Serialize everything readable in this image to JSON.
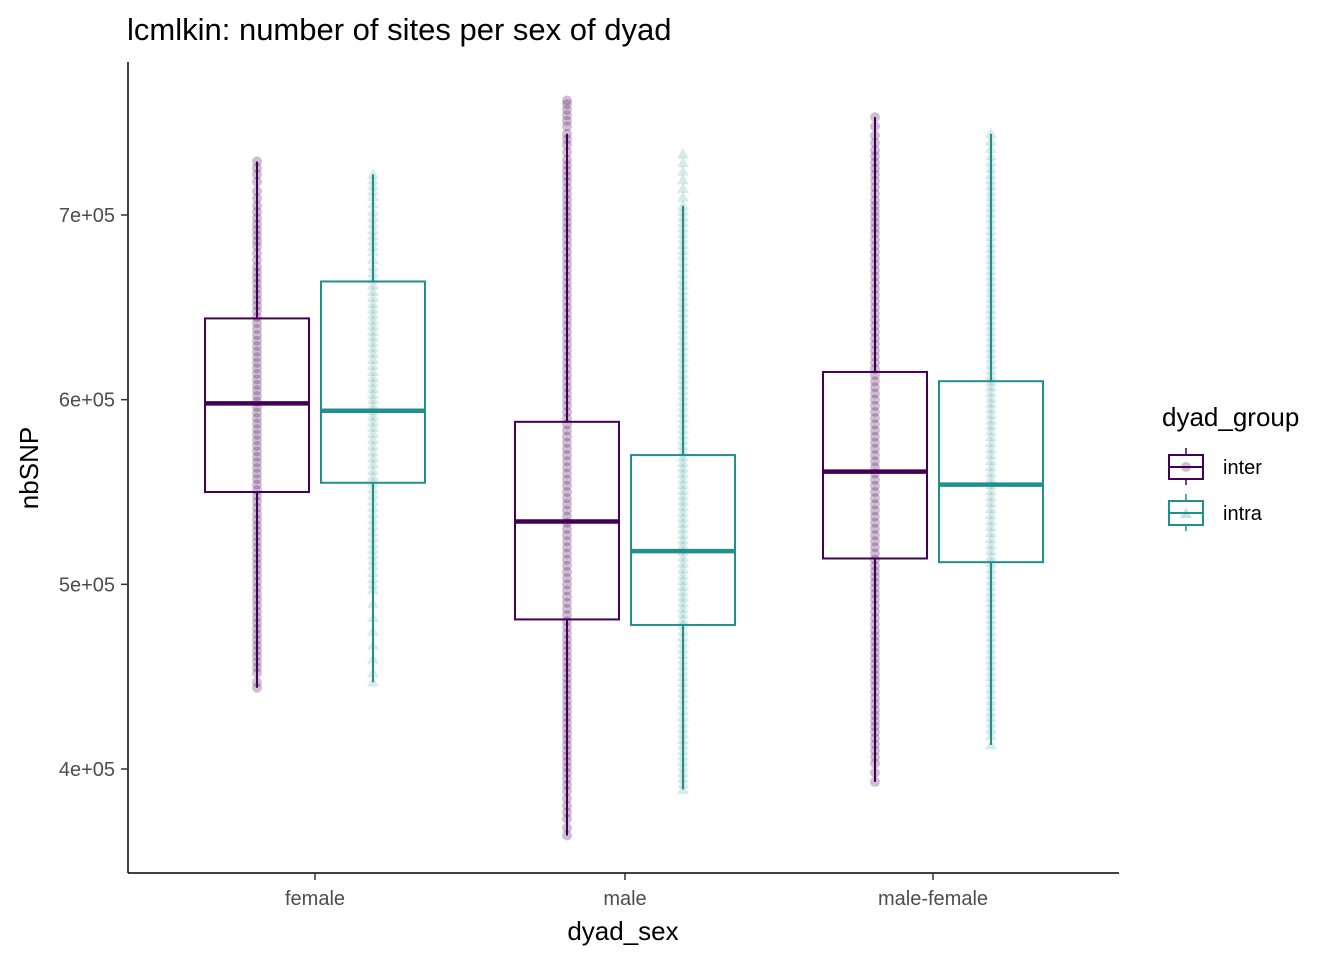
{
  "chart_data": {
    "type": "boxplot",
    "title": "lcmlkin: number of sites per sex of dyad",
    "xlabel": "dyad_sex",
    "ylabel": "nbSNP",
    "categories": [
      "female",
      "male",
      "male-female"
    ],
    "y_ticks": [
      400000,
      500000,
      600000,
      700000
    ],
    "y_tick_labels": [
      "4e+05",
      "5e+05",
      "6e+05",
      "7e+05"
    ],
    "ylim": [
      345000,
      782000
    ],
    "grid": false,
    "legend": {
      "title": "dyad_group",
      "placement": "right",
      "entries": [
        "inter",
        "intra"
      ]
    },
    "colors": {
      "inter": "#440154",
      "intra": "#21908c"
    },
    "point_shapes": {
      "inter": "circle",
      "intra": "triangle"
    },
    "series": [
      {
        "name": "inter",
        "boxes": [
          {
            "category": "female",
            "min": 444000,
            "q1": 550000,
            "median": 598000,
            "q3": 644000,
            "max": 729000,
            "points": [
              444000,
              447000,
              452000,
              455000,
              461000,
              470000,
              482000,
              495000,
              508000,
              520000,
              535000,
              548000,
              560000,
              575000,
              590000,
              605000,
              620000,
              635000,
              648000,
              660000,
              672000,
              683000,
              695000,
              705000,
              713000,
              718000,
              722000,
              729000
            ]
          },
          {
            "category": "male",
            "min": 364000,
            "q1": 481000,
            "median": 534000,
            "q3": 588000,
            "max": 744000,
            "points": [
              364000,
              368000,
              373000,
              380000,
              388000,
              398000,
              410000,
              425000,
              440000,
              455000,
              470000,
              490000,
              510000,
              530000,
              550000,
              570000,
              590000,
              610000,
              630000,
              650000,
              670000,
              690000,
              705000,
              718000,
              730000,
              738000,
              744000,
              748000,
              757000,
              760000,
              762000
            ]
          },
          {
            "category": "male-female",
            "min": 393000,
            "q1": 514000,
            "median": 561000,
            "q3": 615000,
            "max": 753000,
            "points": [
              393000,
              398000,
              403000,
              410000,
              420000,
              432000,
              445000,
              460000,
              475000,
              492000,
              510000,
              530000,
              550000,
              570000,
              590000,
              610000,
              630000,
              650000,
              670000,
              690000,
              708000,
              722000,
              735000,
              743000,
              748000,
              753000
            ]
          }
        ]
      },
      {
        "name": "intra",
        "boxes": [
          {
            "category": "female",
            "min": 447000,
            "q1": 555000,
            "median": 594000,
            "q3": 664000,
            "max": 722000,
            "points": [
              447000,
              452000,
              497000,
              503000,
              510000,
              522000,
              535000,
              545000,
              555000,
              565000,
              575000,
              585000,
              594000,
              603000,
              612000,
              625000,
              640000,
              652000,
              662000,
              672000,
              680000,
              692000,
              702000,
              710000,
              716000,
              722000
            ]
          },
          {
            "category": "male",
            "min": 389000,
            "q1": 478000,
            "median": 518000,
            "q3": 570000,
            "max": 705000,
            "points": [
              389000,
              392000,
              398000,
              410000,
              425000,
              438000,
              450000,
              465000,
              478000,
              490000,
              505000,
              518000,
              530000,
              545000,
              560000,
              575000,
              590000,
              605000,
              620000,
              635000,
              650000,
              665000,
              678000,
              690000,
              705000,
              733000
            ]
          },
          {
            "category": "male-female",
            "min": 413000,
            "q1": 512000,
            "median": 554000,
            "q3": 610000,
            "max": 744000,
            "points": [
              413000,
              418000,
              425000,
              437000,
              450000,
              465000,
              478000,
              490000,
              502000,
              515000,
              528000,
              541000,
              554000,
              567000,
              580000,
              595000,
              610000,
              625000,
              640000,
              655000,
              670000,
              685000,
              698000,
              710000,
              722000,
              732000,
              740000,
              744000
            ]
          }
        ]
      }
    ]
  }
}
